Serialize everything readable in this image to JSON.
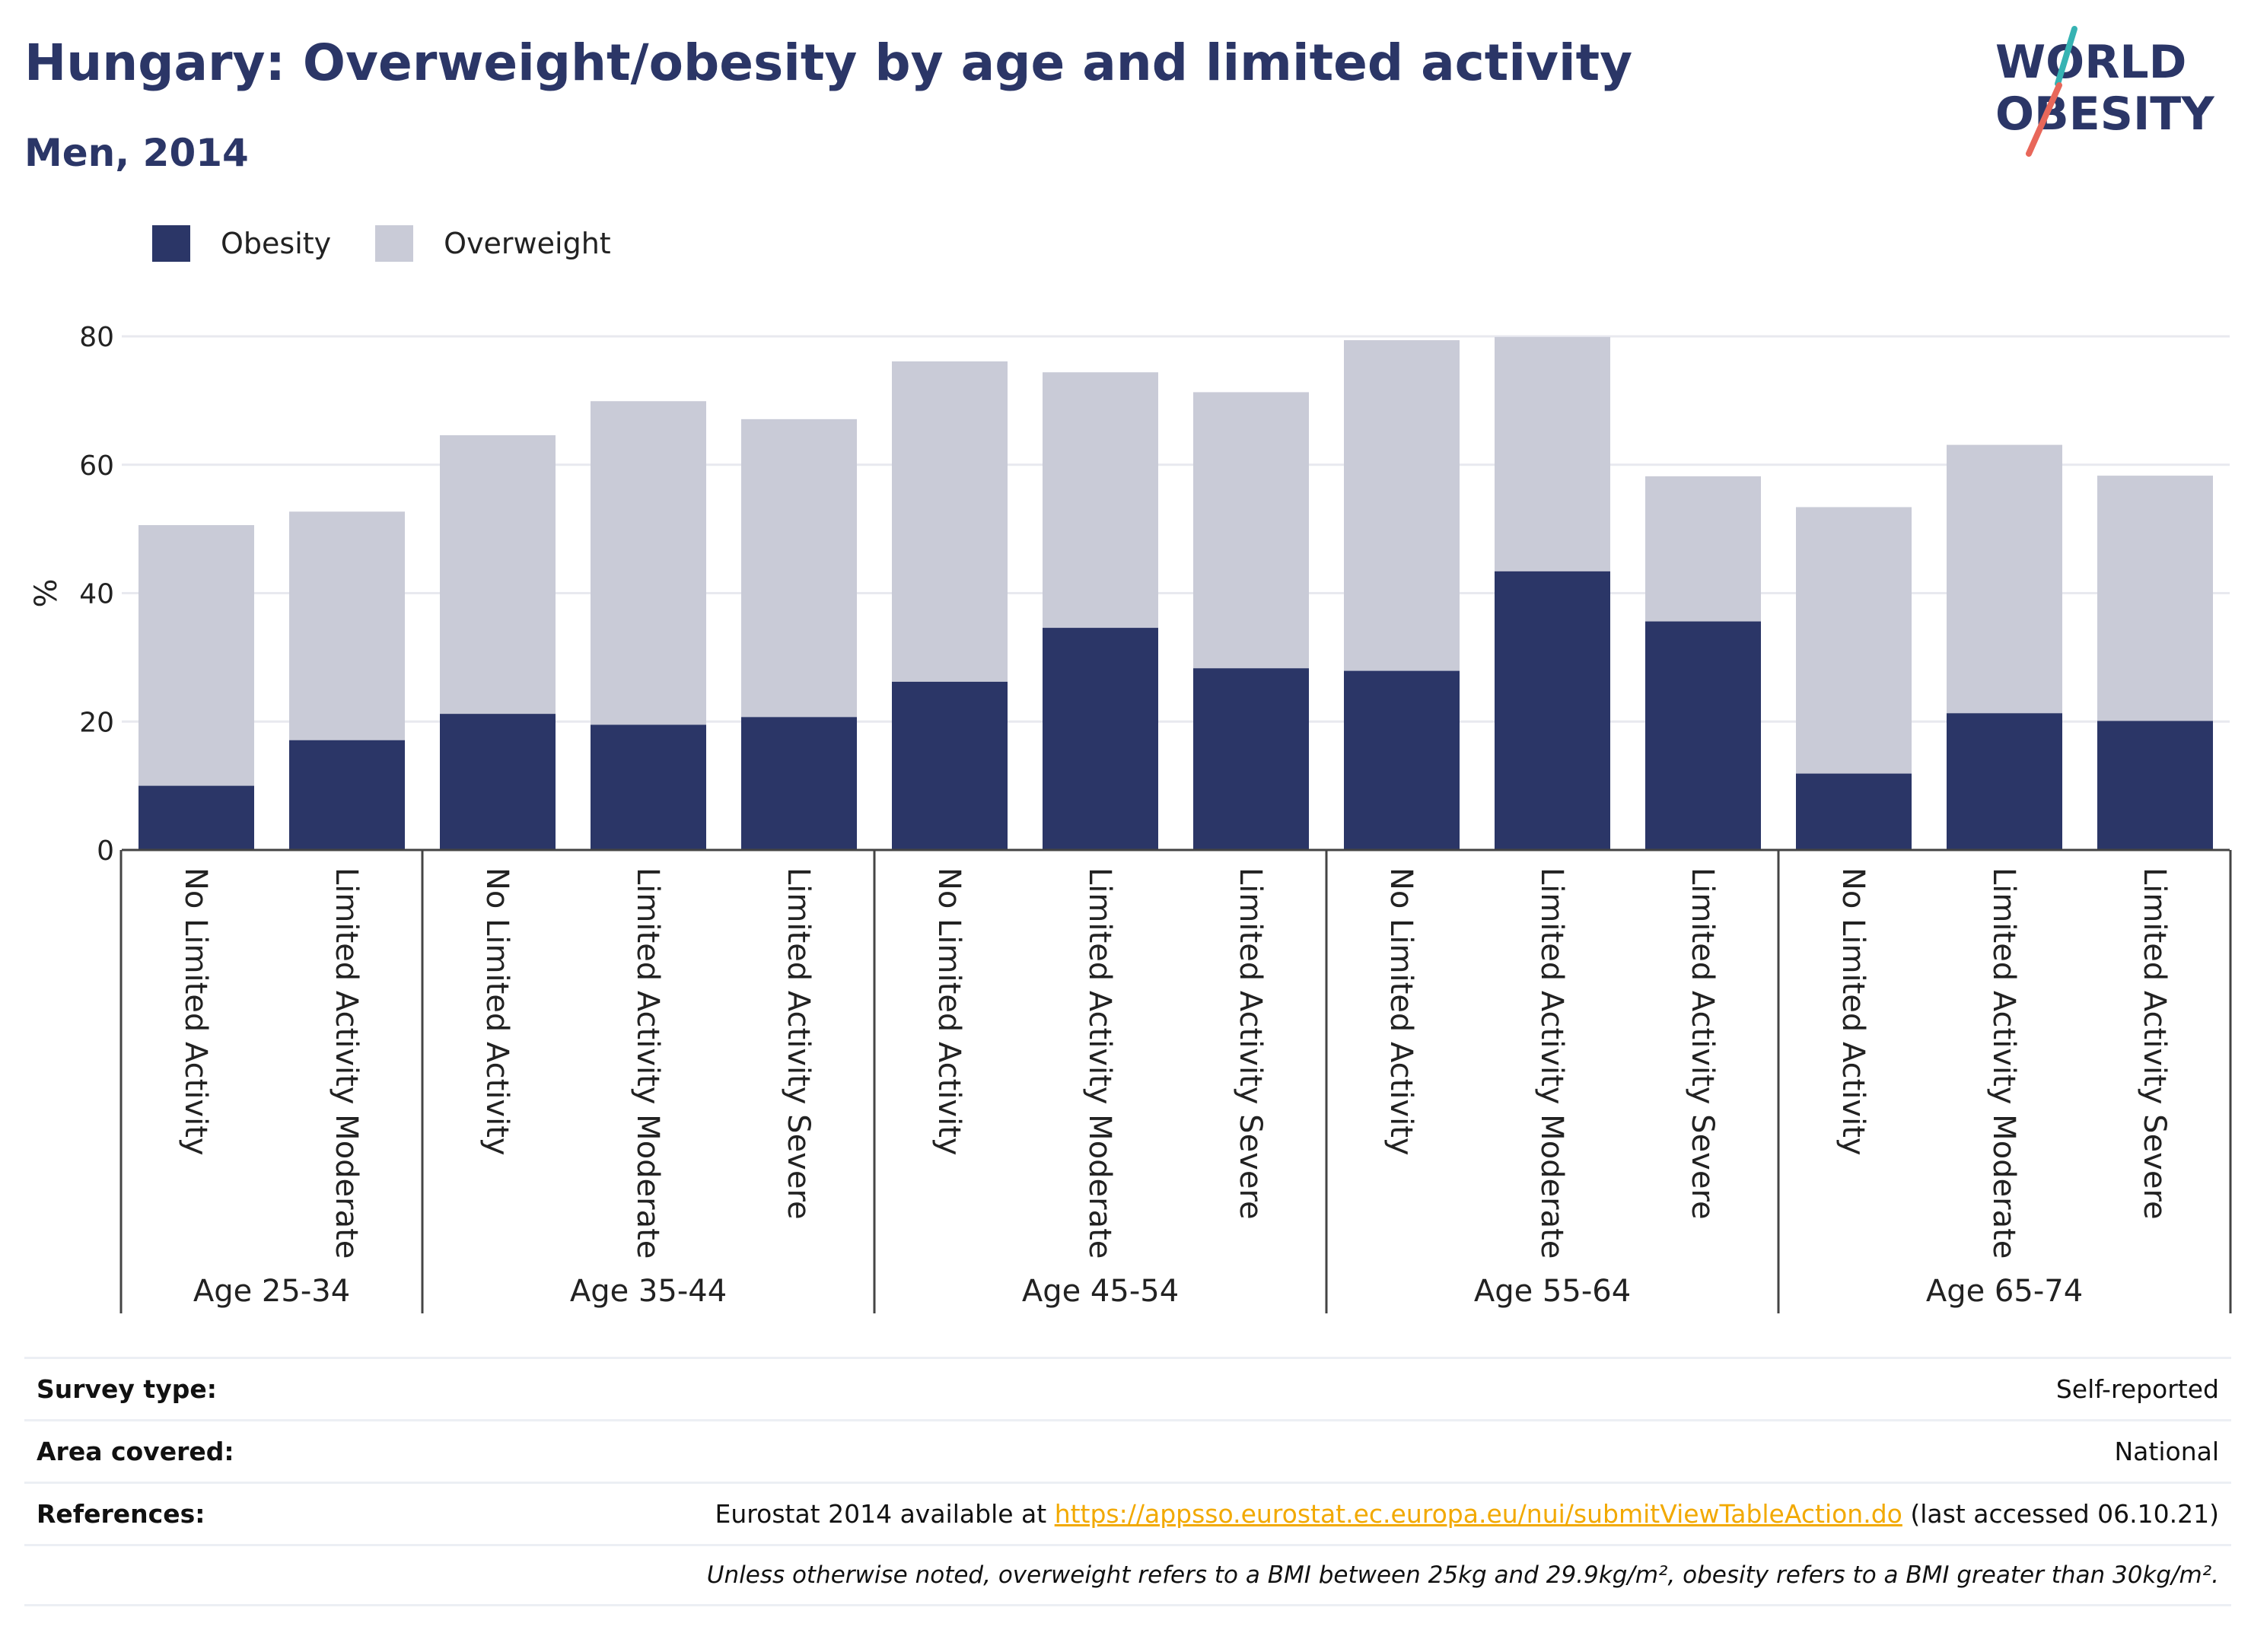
{
  "title": "Hungary: Overweight/obesity by age and limited activity",
  "subtitle": "Men, 2014",
  "logo": {
    "line1": "WORLD",
    "line2": "OBESITY"
  },
  "colors": {
    "obesity": "#2b3667",
    "overweight": "#c9cbd7",
    "accent_teal": "#36b3b3",
    "accent_coral": "#e8675a",
    "link": "#f2a900"
  },
  "chart_data": {
    "type": "bar",
    "stacked": true,
    "ylabel": "%",
    "ylim": [
      0,
      80
    ],
    "yticks": [
      0,
      20,
      40,
      60,
      80
    ],
    "grid": true,
    "legend_position": "top-left",
    "groups": [
      {
        "label": "Age 25-34",
        "categories": [
          "No Limited Activity",
          "Limited Activity Moderate"
        ]
      },
      {
        "label": "Age 35-44",
        "categories": [
          "No Limited Activity",
          "Limited Activity Moderate",
          "Limited Activity Severe"
        ]
      },
      {
        "label": "Age 45-54",
        "categories": [
          "No Limited Activity",
          "Limited Activity Moderate",
          "Limited Activity Severe"
        ]
      },
      {
        "label": "Age 55-64",
        "categories": [
          "No Limited Activity",
          "Limited Activity Moderate",
          "Limited Activity Severe"
        ]
      },
      {
        "label": "Age 65-74",
        "categories": [
          "No Limited Activity",
          "Limited Activity Moderate",
          "Limited Activity Severe"
        ]
      }
    ],
    "series": [
      {
        "name": "Obesity",
        "values": [
          10.0,
          17.1,
          21.2,
          19.5,
          20.7,
          26.2,
          34.6,
          28.3,
          27.9,
          43.4,
          35.6,
          11.9,
          21.3,
          20.1
        ]
      },
      {
        "name": "Overweight",
        "values": [
          40.6,
          35.6,
          43.4,
          50.4,
          46.4,
          49.9,
          39.8,
          43.0,
          51.5,
          36.5,
          22.6,
          41.5,
          41.8,
          38.2
        ]
      }
    ]
  },
  "info": {
    "survey_label": "Survey type:",
    "survey_value": "Self-reported",
    "area_label": "Area covered:",
    "area_value": "National",
    "references_label": "References:",
    "references_prefix": "Eurostat 2014 available at ",
    "references_link": "https://appsso.eurostat.ec.europa.eu/nui/submitViewTableAction.do",
    "references_suffix": " (last accessed 06.10.21)",
    "note": "Unless otherwise noted, overweight refers to a BMI between 25kg and 29.9kg/m², obesity refers to a BMI greater than 30kg/m²."
  }
}
